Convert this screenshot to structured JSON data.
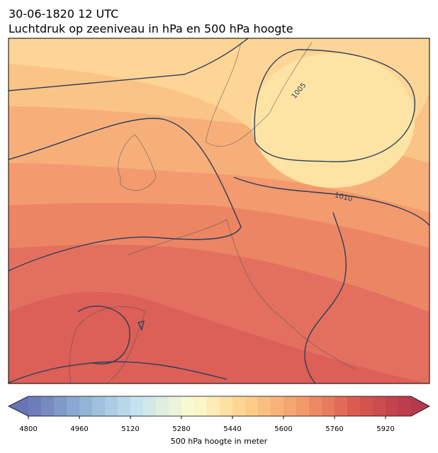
{
  "header": {
    "date": "30-06-1820 12 UTC",
    "title": "Luchtdruk op zeeniveau in hPa en 500 hPa hoogte"
  },
  "isobar_labels": [
    "1005",
    "1010"
  ],
  "colorbar": {
    "label": "500 hPa hoogte in meter",
    "range": [
      4800,
      6000
    ],
    "step": 40,
    "ticks": [
      4800,
      4960,
      5120,
      5280,
      5440,
      5600,
      5760,
      5920
    ],
    "colors": [
      "#6a75b5",
      "#8fb3d6",
      "#c6e3ef",
      "#fcfbcf",
      "#fdd08a",
      "#f29a6b",
      "#d9594f",
      "#b8394e"
    ]
  }
}
